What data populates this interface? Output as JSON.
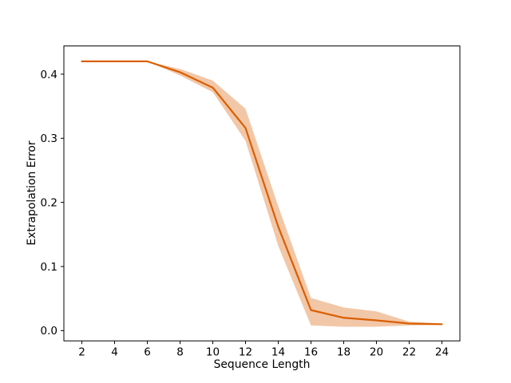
{
  "figure": {
    "background": "#ffffff",
    "border_color": "#000000"
  },
  "chart_data": {
    "type": "line",
    "title": "",
    "xlabel": "Sequence Length",
    "ylabel": "Extrapolation Error",
    "x": [
      2,
      4,
      6,
      8,
      10,
      12,
      14,
      16,
      18,
      20,
      22,
      24
    ],
    "series": [
      {
        "name": "extrapolation-error-mean",
        "kind": "line",
        "values": [
          0.42,
          0.42,
          0.42,
          0.403,
          0.379,
          0.316,
          0.162,
          0.032,
          0.02,
          0.016,
          0.011,
          0.01
        ],
        "color": "#d95f02",
        "linewidth": 2.2
      },
      {
        "name": "confidence-band",
        "kind": "band",
        "lower": [
          0.42,
          0.42,
          0.42,
          0.398,
          0.372,
          0.296,
          0.132,
          0.008,
          0.006,
          0.006,
          0.008,
          0.009
        ],
        "upper": [
          0.42,
          0.42,
          0.42,
          0.408,
          0.39,
          0.346,
          0.194,
          0.051,
          0.036,
          0.03,
          0.014,
          0.011
        ],
        "color": "#d95f02",
        "opacity": 0.35
      }
    ],
    "xlim": [
      0.9,
      25.1
    ],
    "ylim": [
      -0.016,
      0.444
    ],
    "xticks": [
      2,
      4,
      6,
      8,
      10,
      12,
      14,
      16,
      18,
      20,
      22,
      24
    ],
    "xtick_labels": [
      "2",
      "4",
      "6",
      "8",
      "10",
      "12",
      "14",
      "16",
      "18",
      "20",
      "22",
      "24"
    ],
    "yticks": [
      0.0,
      0.1,
      0.2,
      0.3,
      0.4
    ],
    "ytick_labels": [
      "0.0",
      "0.1",
      "0.2",
      "0.3",
      "0.4"
    ],
    "grid": false,
    "legend": null
  }
}
